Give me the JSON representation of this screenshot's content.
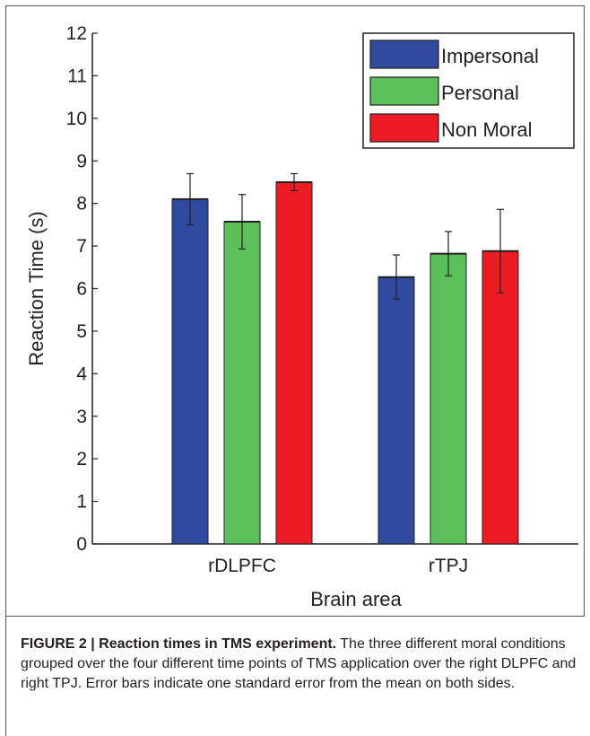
{
  "chart_data": {
    "type": "bar",
    "categories": [
      "rDLPFC",
      "rTPJ"
    ],
    "series": [
      {
        "name": "Impersonal",
        "color": "#2f4a9e",
        "values": [
          8.1,
          6.27
        ],
        "errors": [
          0.6,
          0.52
        ]
      },
      {
        "name": "Personal",
        "color": "#5cc05a",
        "values": [
          7.57,
          6.82
        ],
        "errors": [
          0.64,
          0.52
        ]
      },
      {
        "name": "Non Moral",
        "color": "#ec1c24",
        "values": [
          8.5,
          6.88
        ],
        "errors": [
          0.2,
          0.98
        ]
      }
    ],
    "title": "",
    "xlabel": "Brain area",
    "ylabel": "Reaction Time (s)",
    "ylim": [
      0,
      12
    ],
    "yticks": [
      "0",
      "1",
      "2",
      "3",
      "4",
      "5",
      "6",
      "7",
      "8",
      "9",
      "10",
      "11",
      "12"
    ],
    "grid": false,
    "legend": "top-right"
  },
  "caption": {
    "title": "FIGURE 2 | Reaction times in TMS experiment.",
    "text": " The three different moral conditions grouped over the four different time points of TMS application over the right DLPFC and right TPJ. Error bars indicate one standard error from the mean on both sides."
  }
}
